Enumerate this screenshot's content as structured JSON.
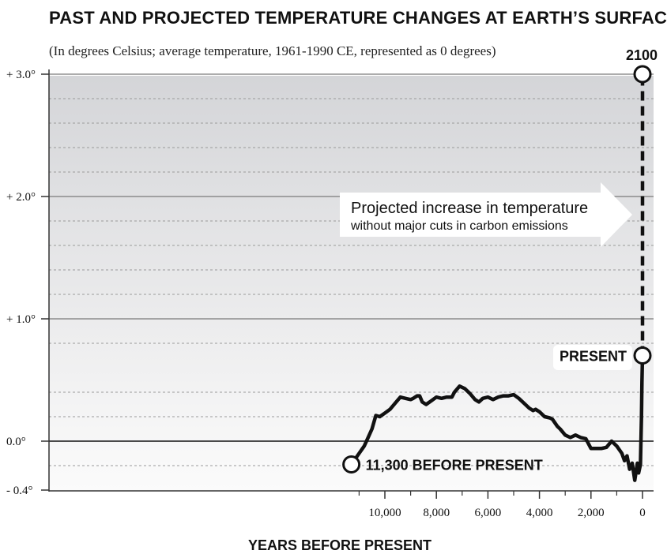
{
  "chart_data": {
    "type": "line",
    "title": "PAST AND PROJECTED TEMPERATURE CHANGES AT EARTH’S SURFACE",
    "subtitle": "(In degrees Celsius; average temperature, 1961-1990 CE, represented as 0 degrees)",
    "xlabel": "YEARS BEFORE PRESENT",
    "ylabel": "",
    "xlim": [
      11500,
      -200
    ],
    "ylim": [
      -0.4,
      3.0
    ],
    "x_ticks": [
      {
        "value": 10000,
        "label": "10,000"
      },
      {
        "value": 8000,
        "label": "8,000"
      },
      {
        "value": 6000,
        "label": "6,000"
      },
      {
        "value": 4000,
        "label": "4,000"
      },
      {
        "value": 2000,
        "label": "2,000"
      },
      {
        "value": 0,
        "label": "0"
      }
    ],
    "y_ticks": [
      {
        "value": 3.0,
        "label": "+ 3.0°"
      },
      {
        "value": 2.0,
        "label": "+ 2.0°"
      },
      {
        "value": 1.0,
        "label": "+ 1.0°"
      },
      {
        "value": 0.0,
        "label": "0.0°"
      },
      {
        "value": -0.4,
        "label": "- 0.4°"
      }
    ],
    "minor_gridlines": [
      -0.2,
      0.2,
      0.4,
      0.8,
      1.2,
      1.4,
      1.6,
      1.8,
      2.2,
      2.4,
      2.6,
      2.8
    ],
    "series": [
      {
        "style": "solid",
        "x": [
          11300,
          11000,
          10800,
          10650,
          10500,
          10350,
          10200,
          10000,
          9800,
          9600,
          9400,
          9200,
          9000,
          8900,
          8750,
          8650,
          8550,
          8400,
          8200,
          8000,
          7800,
          7600,
          7400,
          7300,
          7100,
          6900,
          6700,
          6500,
          6350,
          6200,
          6000,
          5800,
          5600,
          5400,
          5200,
          5000,
          4800,
          4600,
          4400,
          4250,
          4150,
          4000,
          3800,
          3600,
          3500,
          3300,
          3200,
          3000,
          2800,
          2600,
          2400,
          2200,
          2000,
          1800,
          1600,
          1400,
          1200,
          1000,
          800,
          700,
          600,
          500,
          400,
          300,
          200,
          150,
          80,
          40,
          20,
          0
        ],
        "y": [
          -0.19,
          -0.1,
          -0.04,
          0.03,
          0.1,
          0.21,
          0.2,
          0.23,
          0.26,
          0.31,
          0.36,
          0.35,
          0.34,
          0.35,
          0.37,
          0.37,
          0.32,
          0.3,
          0.33,
          0.36,
          0.35,
          0.36,
          0.36,
          0.4,
          0.45,
          0.43,
          0.39,
          0.34,
          0.32,
          0.35,
          0.36,
          0.34,
          0.36,
          0.37,
          0.37,
          0.38,
          0.35,
          0.31,
          0.27,
          0.25,
          0.26,
          0.24,
          0.2,
          0.19,
          0.18,
          0.12,
          0.1,
          0.05,
          0.03,
          0.05,
          0.03,
          0.02,
          -0.06,
          -0.06,
          -0.06,
          -0.05,
          0.0,
          -0.04,
          -0.1,
          -0.16,
          -0.12,
          -0.23,
          -0.18,
          -0.32,
          -0.18,
          -0.26,
          -0.19,
          0.2,
          0.48,
          0.7
        ]
      },
      {
        "style": "dashed",
        "x": [
          0,
          0
        ],
        "y": [
          0.7,
          3.0
        ]
      }
    ],
    "annotations": [
      {
        "text": "11,300 BEFORE PRESENT",
        "x": 11300,
        "y": -0.19
      },
      {
        "text": "PRESENT",
        "x": 0,
        "y": 0.7
      },
      {
        "text": "2100",
        "x": 0,
        "y": 3.0
      }
    ],
    "arrow_label": {
      "line1": "Projected increase in temperature",
      "line2": "without major cuts in carbon emissions"
    },
    "grid": true,
    "legend": "none"
  }
}
